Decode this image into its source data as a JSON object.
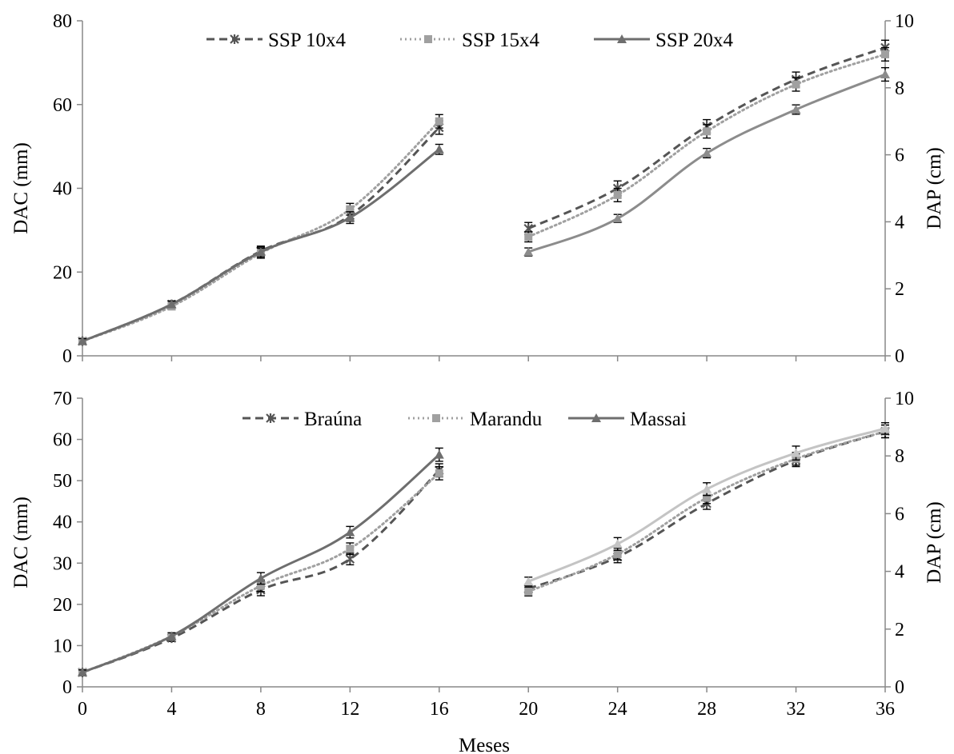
{
  "chart_data": [
    {
      "type": "line",
      "panel": "top",
      "x_label": "",
      "y_left_label": "DAC (mm)",
      "y_right_label": "DAP (cm)",
      "x_ticks": [
        0,
        4,
        8,
        12,
        16,
        20,
        24,
        28,
        32,
        36
      ],
      "y_left_ticks": [
        0,
        20,
        40,
        60,
        80
      ],
      "y_left_range": [
        0,
        80
      ],
      "y_right_ticks": [
        0,
        2,
        4,
        6,
        8,
        10
      ],
      "y_right_range": [
        0,
        10
      ],
      "legend_position": "top",
      "series": [
        {
          "name": "SSP 10x4",
          "style": "dashed",
          "marker": "star",
          "color": "#555555",
          "dac": {
            "x": [
              0,
              4,
              8,
              12,
              16
            ],
            "y": [
              3.5,
              12.3,
              25.0,
              33.5,
              54.5
            ],
            "err": [
              0.6,
              0.8,
              1.2,
              1.4,
              1.6
            ]
          },
          "dap": {
            "x": [
              20,
              24,
              28,
              32,
              36
            ],
            "y": [
              3.8,
              5.0,
              6.85,
              8.25,
              9.2
            ],
            "err": [
              0.18,
              0.22,
              0.2,
              0.22,
              0.22
            ]
          }
        },
        {
          "name": "SSP 15x4",
          "style": "dotted",
          "marker": "square",
          "color": "#a0a0a0",
          "dac": {
            "x": [
              0,
              4,
              8,
              12,
              16
            ],
            "y": [
              3.5,
              11.8,
              24.5,
              35.0,
              56.0
            ],
            "err": [
              0.6,
              0.8,
              1.2,
              1.4,
              1.6
            ]
          },
          "dap": {
            "x": [
              20,
              24,
              28,
              32,
              36
            ],
            "y": [
              3.55,
              4.8,
              6.7,
              8.1,
              9.0
            ],
            "err": [
              0.15,
              0.2,
              0.2,
              0.2,
              0.2
            ]
          }
        },
        {
          "name": "SSP 20x4",
          "style": "solid",
          "marker": "triangle",
          "color": "#6e6e6e",
          "right_color": "#8c8c8c",
          "dac": {
            "x": [
              0,
              4,
              8,
              12,
              16
            ],
            "y": [
              3.5,
              12.3,
              24.8,
              33.0,
              49.3
            ],
            "err": [
              0.6,
              0.8,
              1.2,
              1.4,
              1.2
            ]
          },
          "dap": {
            "x": [
              20,
              24,
              28,
              32,
              36
            ],
            "y": [
              3.1,
              4.1,
              6.05,
              7.35,
              8.4
            ],
            "err": [
              0.12,
              0.12,
              0.14,
              0.14,
              0.2
            ]
          }
        }
      ]
    },
    {
      "type": "line",
      "panel": "bottom",
      "x_label": "Meses",
      "y_left_label": "DAC (mm)",
      "y_right_label": "DAP (cm)",
      "x_ticks": [
        0,
        4,
        8,
        12,
        16,
        20,
        24,
        28,
        32,
        36
      ],
      "y_left_ticks": [
        0,
        10,
        20,
        30,
        40,
        50,
        60,
        70
      ],
      "y_left_range": [
        0,
        70
      ],
      "y_right_ticks": [
        0,
        2,
        4,
        6,
        8,
        10
      ],
      "y_right_range": [
        0,
        10
      ],
      "legend_position": "top",
      "series": [
        {
          "name": "Braúna",
          "style": "dashed",
          "marker": "star",
          "color": "#555555",
          "dac": {
            "x": [
              0,
              4,
              8,
              12,
              16
            ],
            "y": [
              3.5,
              11.8,
              23.5,
              31.0,
              52.5
            ],
            "err": [
              0.6,
              0.8,
              1.4,
              1.4,
              1.6
            ]
          },
          "dap": {
            "x": [
              20,
              24,
              28,
              32,
              36
            ],
            "y": [
              3.4,
              4.5,
              6.35,
              7.85,
              8.85
            ],
            "err": [
              0.15,
              0.2,
              0.2,
              0.22,
              0.22
            ]
          }
        },
        {
          "name": "Marandu",
          "style": "dotted",
          "marker": "square",
          "color": "#a0a0a0",
          "dac": {
            "x": [
              0,
              4,
              8,
              12,
              16
            ],
            "y": [
              3.5,
              12.3,
              24.5,
              33.5,
              51.8
            ],
            "err": [
              0.6,
              0.8,
              1.4,
              1.4,
              1.6
            ]
          },
          "dap": {
            "x": [
              20,
              24,
              28,
              32,
              36
            ],
            "y": [
              3.3,
              4.6,
              6.55,
              7.9,
              8.85
            ],
            "err": [
              0.15,
              0.2,
              0.2,
              0.22,
              0.22
            ]
          }
        },
        {
          "name": "Massai",
          "style": "solid",
          "marker": "triangle",
          "color": "#6e6e6e",
          "right_color": "#c4c4c4",
          "dac": {
            "x": [
              0,
              4,
              8,
              12,
              16
            ],
            "y": [
              3.5,
              12.3,
              26.3,
              37.5,
              56.3
            ],
            "err": [
              0.6,
              0.8,
              1.4,
              1.4,
              1.6
            ]
          },
          "dap": {
            "x": [
              20,
              24,
              28,
              32,
              36
            ],
            "y": [
              3.65,
              4.95,
              6.85,
              8.1,
              8.95
            ],
            "err": [
              0.15,
              0.22,
              0.22,
              0.24,
              0.2
            ]
          }
        }
      ]
    }
  ]
}
